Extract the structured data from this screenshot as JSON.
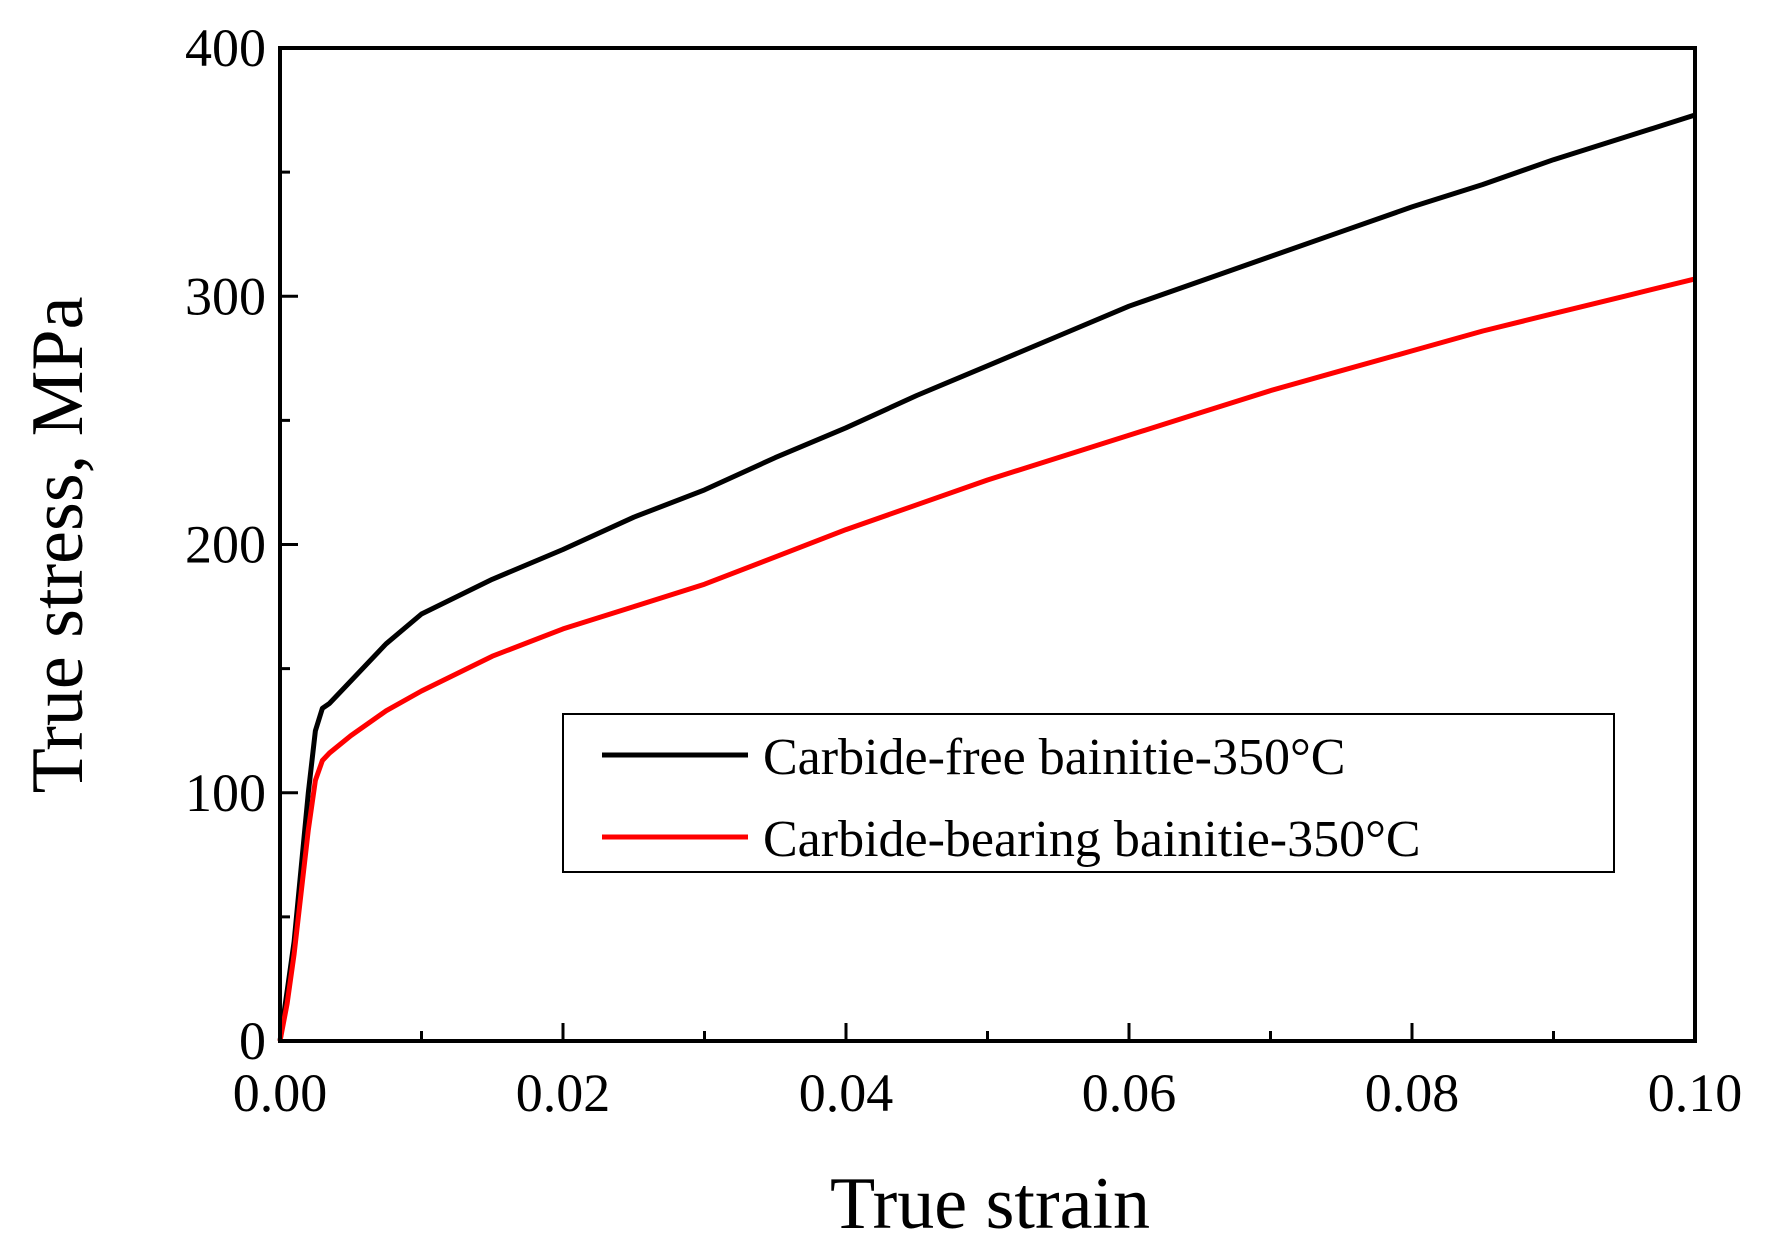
{
  "chart_data": {
    "type": "line",
    "title": "",
    "xlabel": "True strain",
    "ylabel": "True stress, MPa",
    "xlim": [
      0,
      0.1
    ],
    "ylim": [
      0,
      400
    ],
    "xticks": [
      0,
      0.02,
      0.04,
      0.06,
      0.08,
      0.1
    ],
    "xtick_labels": [
      "0.00",
      "0.02",
      "0.04",
      "0.06",
      "0.08",
      "0.10"
    ],
    "yticks": [
      0,
      100,
      200,
      300,
      400
    ],
    "ytick_labels": [
      "0",
      "100",
      "200",
      "300",
      "400"
    ],
    "grid": false,
    "legend_position": "center-right",
    "series": [
      {
        "name": "Carbide-free bainitie-350°C",
        "color": "#000000",
        "x": [
          0,
          0.0005,
          0.001,
          0.0015,
          0.002,
          0.0025,
          0.003,
          0.0035,
          0.005,
          0.0075,
          0.01,
          0.015,
          0.02,
          0.025,
          0.03,
          0.035,
          0.04,
          0.045,
          0.05,
          0.055,
          0.06,
          0.065,
          0.07,
          0.075,
          0.08,
          0.085,
          0.09,
          0.095,
          0.1
        ],
        "y": [
          0,
          20,
          40,
          70,
          100,
          125,
          134,
          136,
          145,
          160,
          172,
          186,
          198,
          211,
          222,
          235,
          247,
          260,
          272,
          284,
          296,
          306,
          316,
          326,
          336,
          345,
          355,
          364,
          373
        ]
      },
      {
        "name": "Carbide-bearing bainitie-350°C",
        "color": "#ff0000",
        "x": [
          0,
          0.0005,
          0.001,
          0.0015,
          0.002,
          0.0025,
          0.003,
          0.0035,
          0.005,
          0.0075,
          0.01,
          0.015,
          0.02,
          0.025,
          0.03,
          0.035,
          0.04,
          0.045,
          0.05,
          0.055,
          0.06,
          0.065,
          0.07,
          0.075,
          0.08,
          0.085,
          0.09,
          0.095,
          0.1
        ],
        "y": [
          0,
          15,
          35,
          60,
          85,
          105,
          113,
          116,
          123,
          133,
          141,
          155,
          166,
          175,
          184,
          195,
          206,
          216,
          226,
          235,
          244,
          253,
          262,
          270,
          278,
          286,
          293,
          300,
          307
        ]
      }
    ]
  }
}
